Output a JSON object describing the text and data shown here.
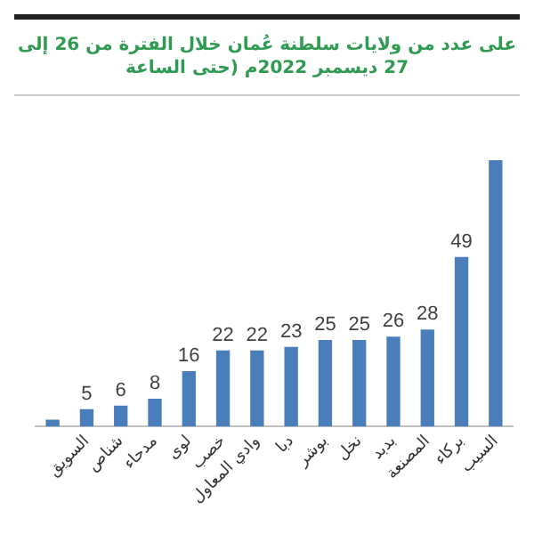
{
  "chart_data": {
    "type": "bar",
    "title": "على عدد من ولايات سلطنة عُمان خلال الفترة من 26 إلى 27 ديسمبر 2022م (حتى الساعة",
    "categories": [
      null,
      "السويق",
      "شناص",
      "مدحاء",
      "لوى",
      "خصب",
      "وادي المعاول",
      "دبا",
      "بوشر",
      "نخل",
      "بدبد",
      "المصنعة",
      "بركاء",
      "السيب"
    ],
    "values": [
      2,
      5,
      6,
      8,
      16,
      22,
      22,
      23,
      25,
      25,
      26,
      28,
      49,
      77
    ],
    "value_labels": [
      null,
      "5",
      "6",
      "8",
      "16",
      "22",
      "22",
      "23",
      "25",
      "25",
      "26",
      "28",
      "49",
      null
    ],
    "color": "#4a7ebb"
  }
}
